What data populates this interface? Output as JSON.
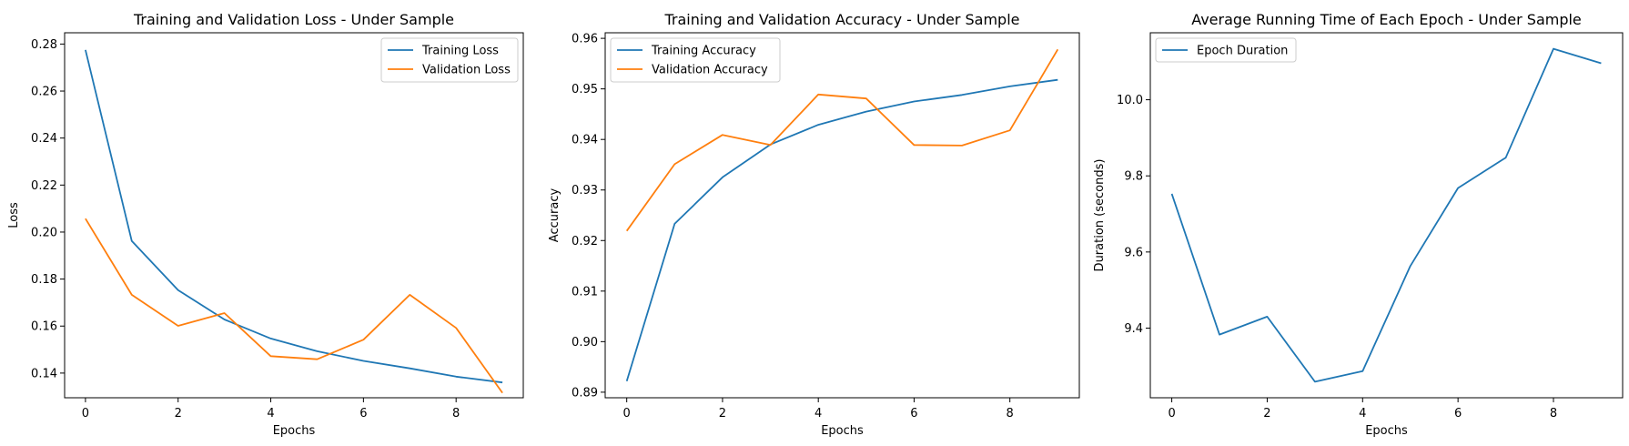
{
  "colors": {
    "blue": "#1f77b4",
    "orange": "#ff7f0e"
  },
  "chart_data": [
    {
      "type": "line",
      "title": "Training and Validation Loss - Under Sample",
      "xlabel": "Epochs",
      "ylabel": "Loss",
      "x": [
        0,
        1,
        2,
        3,
        4,
        5,
        6,
        7,
        8,
        9
      ],
      "xticks": [
        0,
        2,
        4,
        6,
        8
      ],
      "yticks": [
        0.14,
        0.16,
        0.18,
        0.2,
        0.22,
        0.24,
        0.26,
        0.28
      ],
      "yticklabels": [
        "0.14",
        "0.16",
        "0.18",
        "0.20",
        "0.22",
        "0.24",
        "0.26",
        "0.28"
      ],
      "ylim": [
        0.1295,
        0.2848
      ],
      "xlim": [
        -0.45,
        9.45
      ],
      "legend_position": "top-right",
      "series": [
        {
          "name": "Training Loss",
          "color": "#1f77b4",
          "values": [
            0.2775,
            0.1962,
            0.1753,
            0.1628,
            0.1547,
            0.1493,
            0.1452,
            0.142,
            0.1385,
            0.136
          ]
        },
        {
          "name": "Validation Loss",
          "color": "#ff7f0e",
          "values": [
            0.2057,
            0.1733,
            0.1601,
            0.1655,
            0.1472,
            0.1459,
            0.1542,
            0.1733,
            0.1592,
            0.1316
          ]
        }
      ]
    },
    {
      "type": "line",
      "title": "Training and Validation Accuracy - Under Sample",
      "xlabel": "Epochs",
      "ylabel": "Accuracy",
      "x": [
        0,
        1,
        2,
        3,
        4,
        5,
        6,
        7,
        8,
        9
      ],
      "xticks": [
        0,
        2,
        4,
        6,
        8
      ],
      "yticks": [
        0.89,
        0.9,
        0.91,
        0.92,
        0.93,
        0.94,
        0.95,
        0.96
      ],
      "yticklabels": [
        "0.89",
        "0.90",
        "0.91",
        "0.92",
        "0.93",
        "0.94",
        "0.95",
        "0.96"
      ],
      "ylim": [
        0.8889,
        0.9611
      ],
      "xlim": [
        -0.45,
        9.45
      ],
      "legend_position": "top-left",
      "series": [
        {
          "name": "Training Accuracy",
          "color": "#1f77b4",
          "values": [
            0.8922,
            0.9233,
            0.9325,
            0.939,
            0.9429,
            0.9455,
            0.9475,
            0.9488,
            0.9505,
            0.9518
          ]
        },
        {
          "name": "Validation Accuracy",
          "color": "#ff7f0e",
          "values": [
            0.9219,
            0.9351,
            0.9409,
            0.9389,
            0.9489,
            0.9481,
            0.9389,
            0.9388,
            0.9418,
            0.9578
          ]
        }
      ]
    },
    {
      "type": "line",
      "title": "Average Running Time of Each Epoch - Under Sample",
      "xlabel": "Epochs",
      "ylabel": "Duration (seconds)",
      "x": [
        0,
        1,
        2,
        3,
        4,
        5,
        6,
        7,
        8,
        9
      ],
      "xticks": [
        0,
        2,
        4,
        6,
        8
      ],
      "yticks": [
        9.4,
        9.6,
        9.8,
        10.0
      ],
      "yticklabels": [
        "9.4",
        "9.6",
        "9.8",
        "10.0"
      ],
      "ylim": [
        9.217,
        10.176
      ],
      "xlim": [
        -0.45,
        9.45
      ],
      "legend_position": "top-left",
      "series": [
        {
          "name": "Epoch Duration",
          "color": "#1f77b4",
          "values": [
            9.753,
            9.383,
            9.43,
            9.259,
            9.287,
            9.563,
            9.768,
            9.848,
            10.134,
            10.096
          ]
        }
      ]
    }
  ]
}
